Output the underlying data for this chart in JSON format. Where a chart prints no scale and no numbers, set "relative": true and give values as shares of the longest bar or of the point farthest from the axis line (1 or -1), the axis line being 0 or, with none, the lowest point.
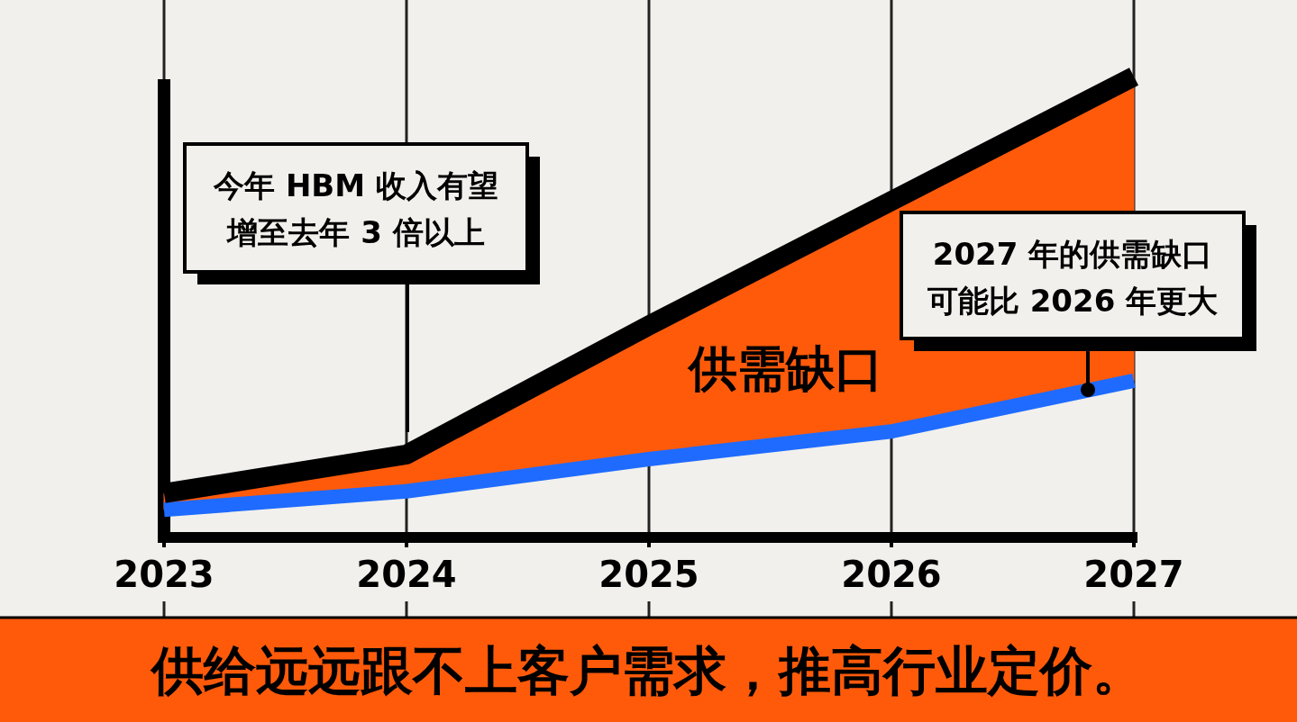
{
  "chart_data": {
    "type": "line",
    "relative": true,
    "grid": "x",
    "categories": [
      "2023",
      "2024",
      "2025",
      "2026",
      "2027"
    ],
    "series": [
      {
        "color": "#000000",
        "values": [
          0.096,
          0.18,
          0.46,
          0.73,
          1
        ],
        "lower": [
          0.06,
          0.1,
          0.17,
          0.23,
          0.34
        ],
        "upper": [
          0.096,
          0.18,
          0.46,
          0.73,
          1
        ],
        "colors": [
          "#ff5a0a",
          "#ff5a0a",
          "#ff5a0a",
          "#ff5a0a",
          "#ff5a0a"
        ]
      },
      {
        "color": "#1f6bff",
        "values": [
          0.06,
          0.1,
          0.17,
          0.23,
          0.34
        ]
      }
    ],
    "annotations": [
      "今年 HBM 收入有望增至去年 3 倍以上",
      "2027 年的供需缺口可能比 2026 年更大",
      "供需缺口",
      "供给远远跟不上客户需求，推高行业定价。"
    ]
  }
}
